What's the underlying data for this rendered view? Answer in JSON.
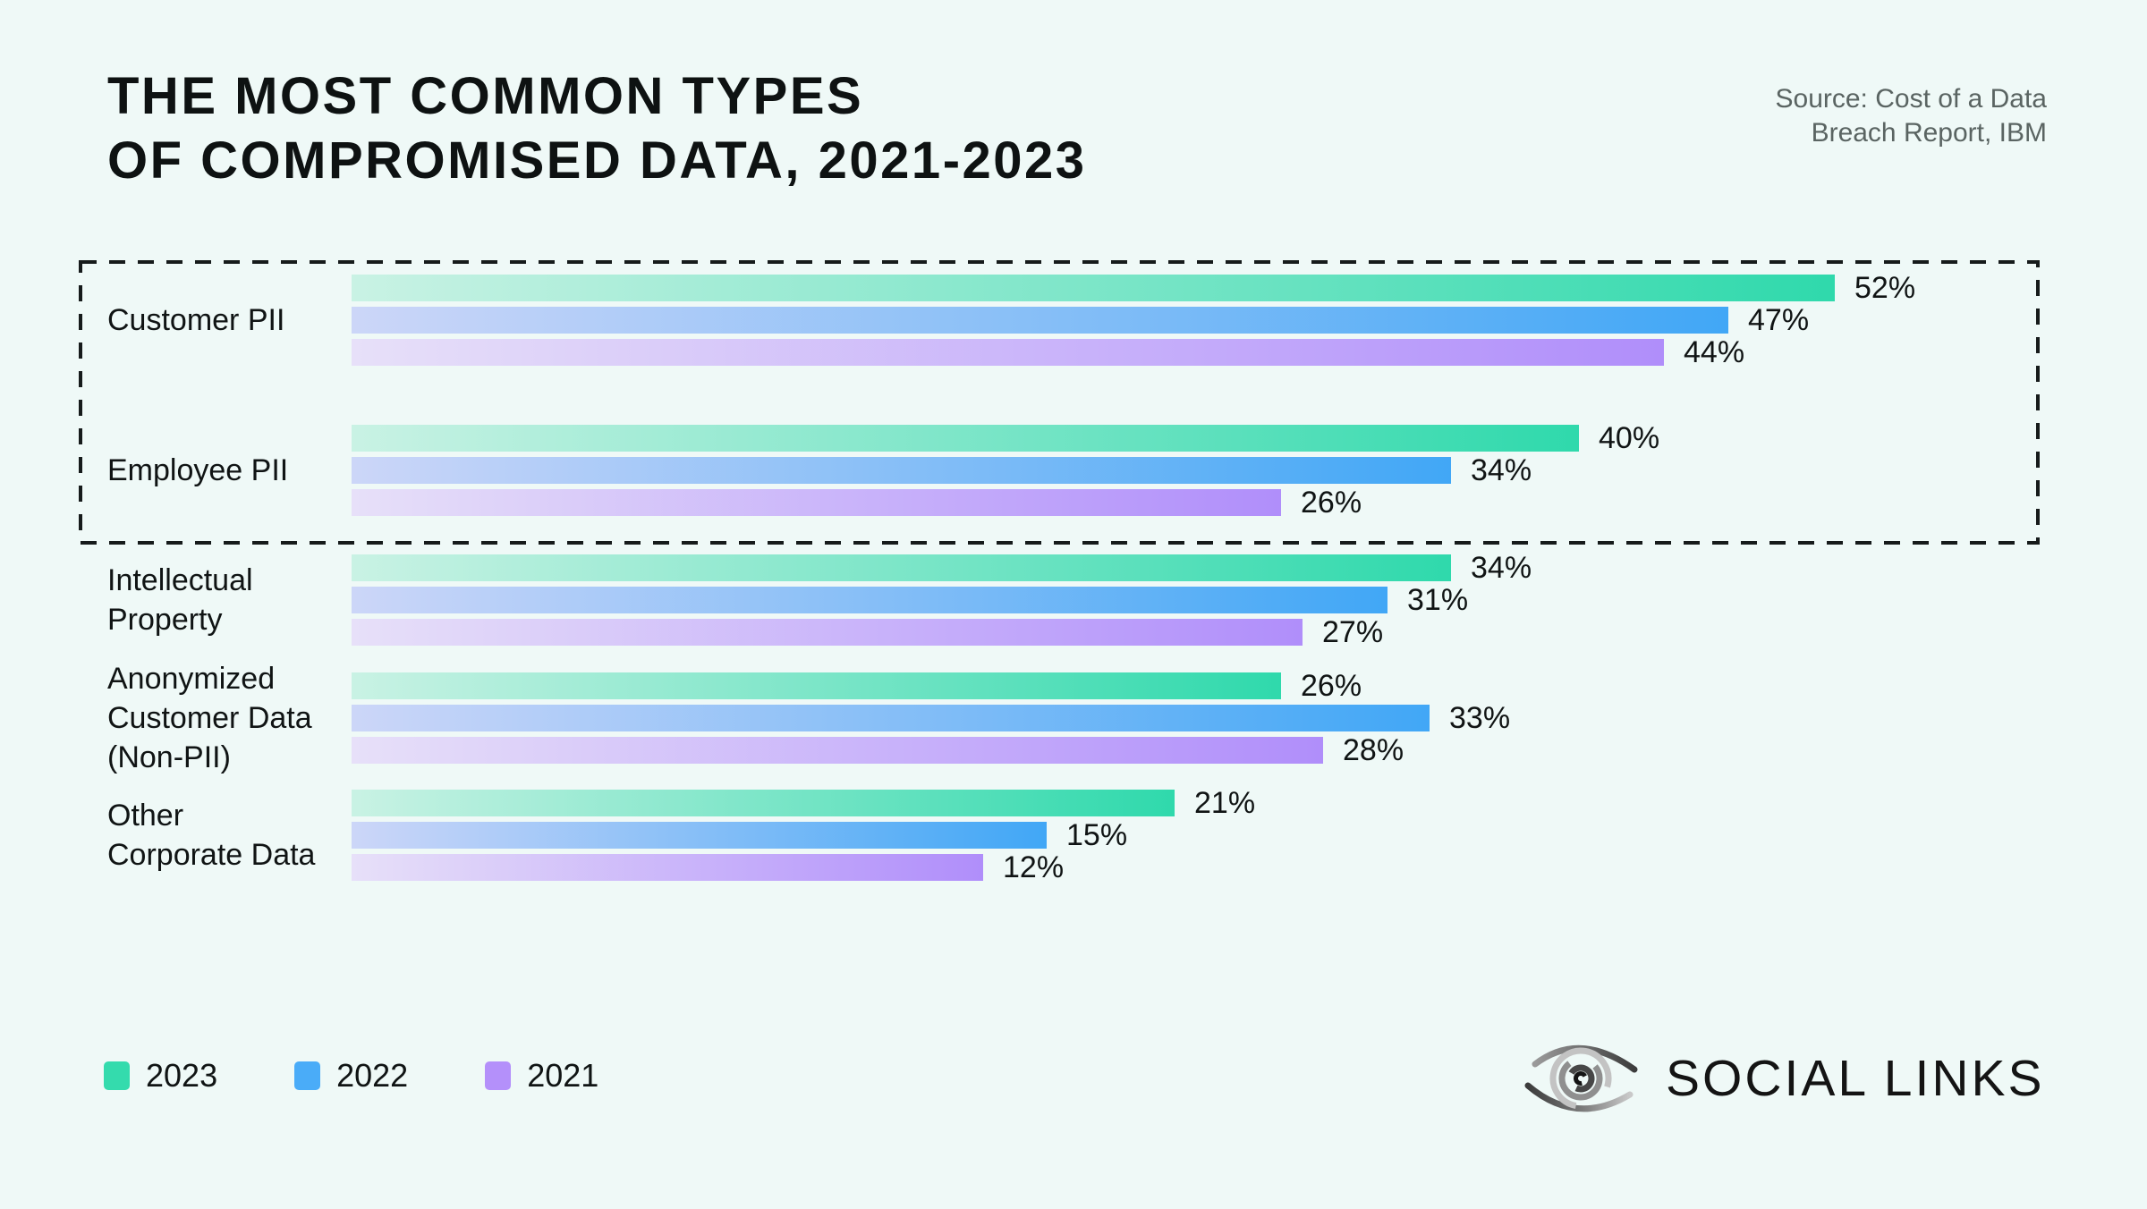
{
  "header": {
    "title_line1": "THE MOST COMMON TYPES",
    "title_line2": "OF COMPROMISED DATA, 2021-2023",
    "source_line1": "Source: Cost of a Data",
    "source_line2": "Breach Report, IBM"
  },
  "legend": {
    "items": [
      {
        "label": "2023",
        "color": "#34dbad"
      },
      {
        "label": "2022",
        "color": "#4aacf8"
      },
      {
        "label": "2021",
        "color": "#b490fa"
      }
    ]
  },
  "brand": {
    "name": "SOCIAL LINKS",
    "icon": "eye-logo-icon"
  },
  "colors": {
    "background": "#eff9f7",
    "text": "#101414",
    "muted_text": "#5a6462",
    "dashed_box": "#161b1b",
    "green_end": "#2fd9ac",
    "blue_end": "#41a7f6",
    "purple_end": "#b08efa"
  },
  "chart_data": {
    "type": "bar",
    "orientation": "horizontal",
    "title": "The most common types of compromised data, 2021-2023",
    "source": "Source: Cost of a Data Breach Report, IBM",
    "value_suffix": "%",
    "grid": false,
    "legend_position": "bottom-left",
    "categories": [
      "Customer PII",
      "Employee PII",
      "Intellectual Property",
      "Anonymized Customer Data (Non-PII)",
      "Other Corporate Data"
    ],
    "category_lines": [
      [
        "Customer PII"
      ],
      [
        "Employee PII"
      ],
      [
        "Intellectual",
        "Property"
      ],
      [
        "Anonymized",
        "Customer Data",
        "(Non-PII)"
      ],
      [
        "Other",
        "Corporate Data"
      ]
    ],
    "highlighted_categories": [
      "Customer PII",
      "Employee PII"
    ],
    "series": [
      {
        "name": "2023",
        "gradient_start": "#c9f2e4",
        "gradient_end": "#2fd9ac",
        "values": [
          52,
          40,
          34,
          26,
          21
        ]
      },
      {
        "name": "2022",
        "gradient_start": "#ccd6f8",
        "gradient_end": "#41a7f6",
        "values": [
          47,
          34,
          31,
          33,
          15
        ]
      },
      {
        "name": "2021",
        "gradient_start": "#e7e0f9",
        "gradient_end": "#b08efa",
        "values": [
          44,
          26,
          27,
          28,
          12
        ]
      }
    ]
  }
}
